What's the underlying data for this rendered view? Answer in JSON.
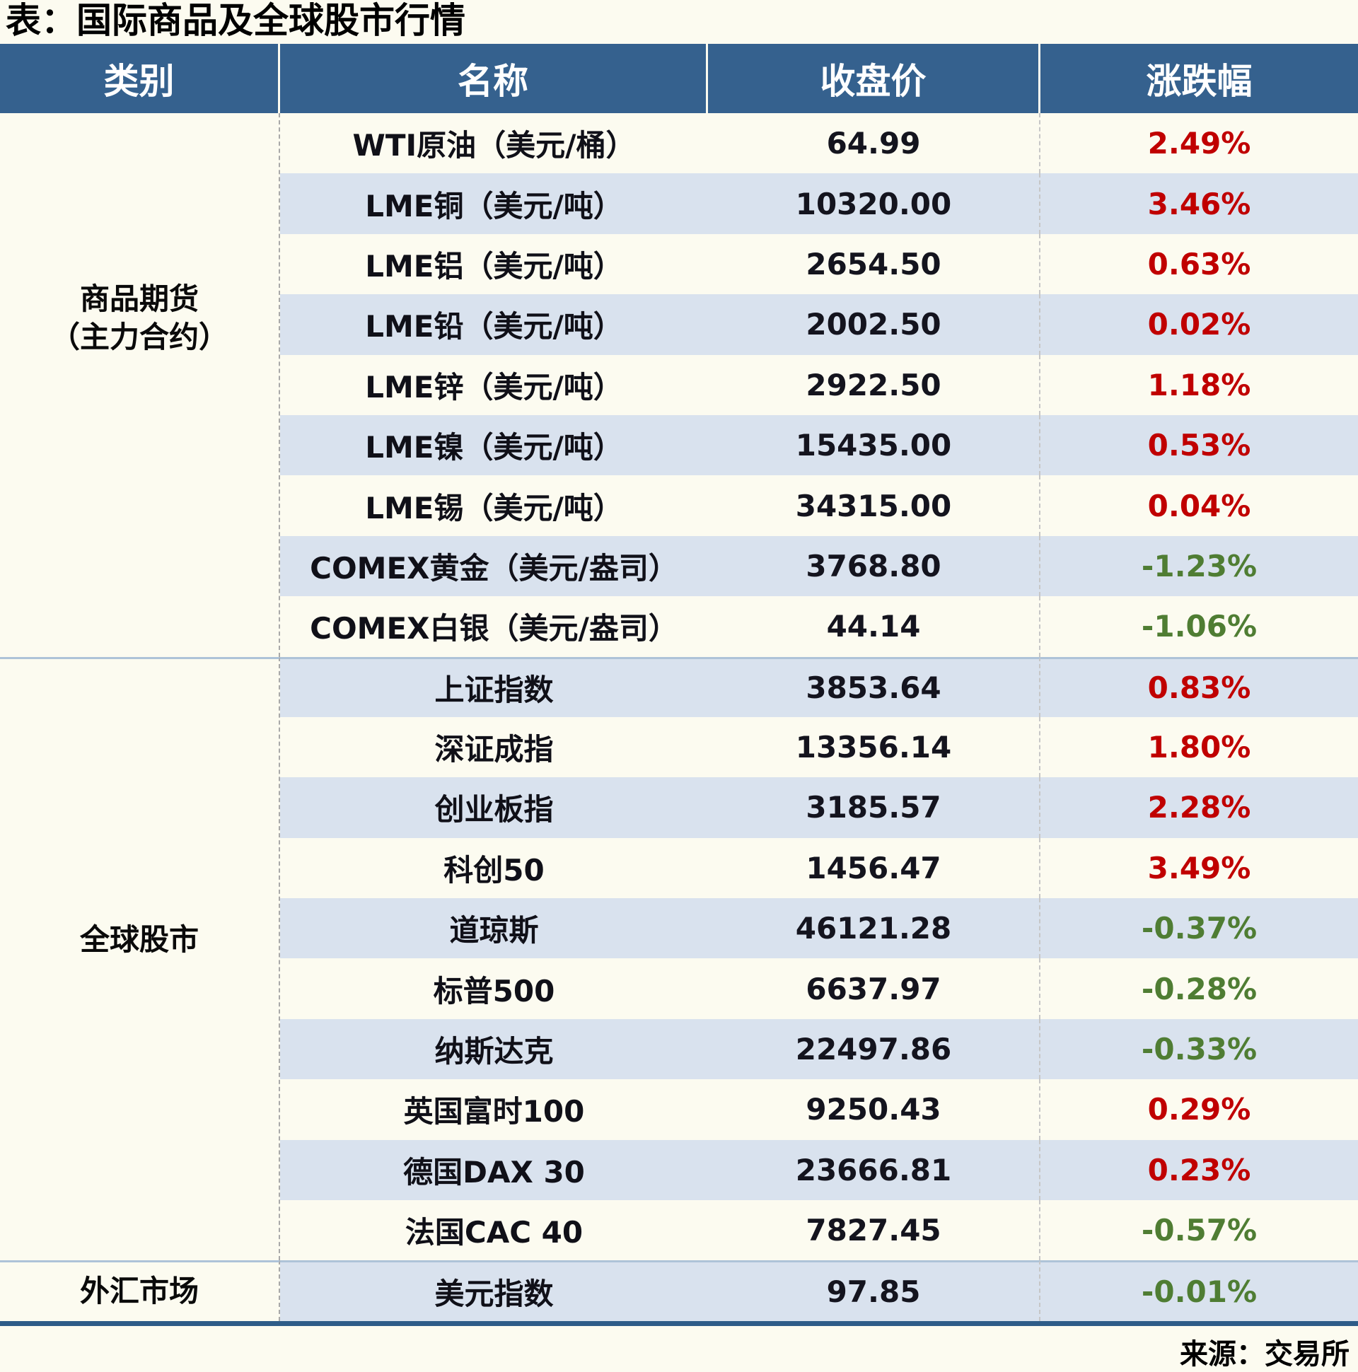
{
  "title": "表：国际商品及全球股市行情",
  "source": "来源：交易所",
  "colors": {
    "page_bg": "#FCFBF0",
    "header_bg": "#35618E",
    "row_alt_bg": "#D9E2EE",
    "up": "#C00000",
    "down": "#4F7D33",
    "section_divider": "#AEC3D8",
    "bottom_border": "#2E5C88"
  },
  "table": {
    "headers": [
      "类别",
      "名称",
      "收盘价",
      "涨跌幅"
    ],
    "sections": [
      {
        "category": "商品期货\n（主力合约）",
        "rows": [
          {
            "name": "WTI原油（美元/桶）",
            "close": "64.99",
            "change": "2.49%"
          },
          {
            "name": "LME铜（美元/吨）",
            "close": "10320.00",
            "change": "3.46%"
          },
          {
            "name": "LME铝（美元/吨）",
            "close": "2654.50",
            "change": "0.63%"
          },
          {
            "name": "LME铅（美元/吨）",
            "close": "2002.50",
            "change": "0.02%"
          },
          {
            "name": "LME锌（美元/吨）",
            "close": "2922.50",
            "change": "1.18%"
          },
          {
            "name": "LME镍（美元/吨）",
            "close": "15435.00",
            "change": "0.53%"
          },
          {
            "name": "LME锡（美元/吨）",
            "close": "34315.00",
            "change": "0.04%"
          },
          {
            "name": "COMEX黄金（美元/盎司）",
            "close": "3768.80",
            "change": "-1.23%"
          },
          {
            "name": "COMEX白银（美元/盎司）",
            "close": "44.14",
            "change": "-1.06%"
          }
        ]
      },
      {
        "category": "全球股市",
        "rows": [
          {
            "name": "上证指数",
            "close": "3853.64",
            "change": "0.83%"
          },
          {
            "name": "深证成指",
            "close": "13356.14",
            "change": "1.80%"
          },
          {
            "name": "创业板指",
            "close": "3185.57",
            "change": "2.28%"
          },
          {
            "name": "科创50",
            "close": "1456.47",
            "change": "3.49%"
          },
          {
            "name": "道琼斯",
            "close": "46121.28",
            "change": "-0.37%"
          },
          {
            "name": "标普500",
            "close": "6637.97",
            "change": "-0.28%"
          },
          {
            "name": "纳斯达克",
            "close": "22497.86",
            "change": "-0.33%"
          },
          {
            "name": "英国富时100",
            "close": "9250.43",
            "change": "0.29%"
          },
          {
            "name": "德国DAX 30",
            "close": "23666.81",
            "change": "0.23%"
          },
          {
            "name": "法国CAC 40",
            "close": "7827.45",
            "change": "-0.57%"
          }
        ]
      },
      {
        "category": "外汇市场",
        "rows": [
          {
            "name": "美元指数",
            "close": "97.85",
            "change": "-0.01%"
          }
        ]
      }
    ]
  }
}
